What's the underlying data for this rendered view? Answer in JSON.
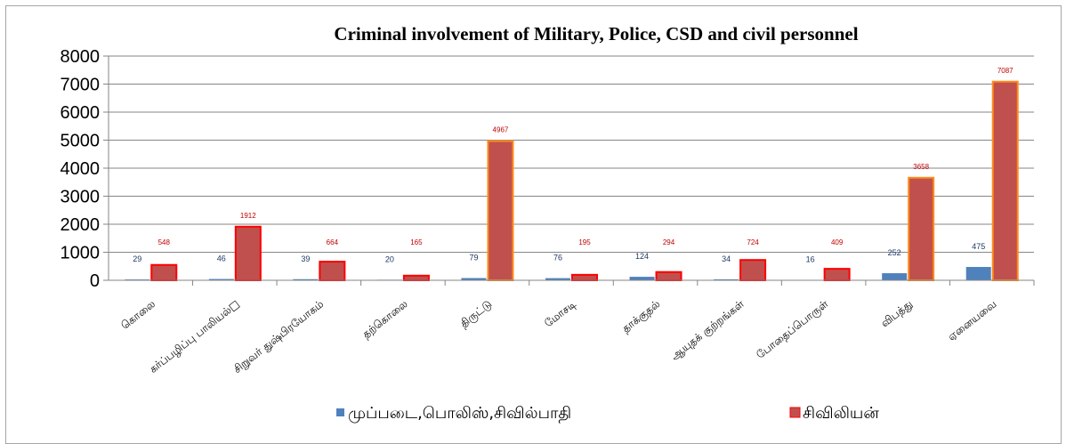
{
  "chart_data": {
    "type": "bar",
    "title": "Criminal involvement of Military, Police, CSD and civil personnel",
    "categories": [
      "கொலை",
      "கர்ப்பழிப்பு பாலியல்□",
      "சிறுவர் துஷ்பிரயோகம்",
      "தற்கொலை",
      "திருட்டு",
      "மோசடி",
      "தாக்குதல்",
      "ஆயுதக் குற்றங்கள்",
      "போதைப்பொருள்",
      "விபத்து",
      "ஏனையவை"
    ],
    "series": [
      {
        "name": "முப்படை,பொலிஸ்,சிவில்பாதி",
        "values": [
          29,
          46,
          39,
          20,
          79,
          76,
          124,
          34,
          16,
          252,
          475
        ],
        "color": "#4f81bd"
      },
      {
        "name": "சிவிலியன்",
        "values": [
          548,
          1912,
          664,
          165,
          4967,
          195,
          294,
          724,
          409,
          3658,
          7087
        ],
        "color": "#c0504d"
      }
    ],
    "ylim": [
      0,
      8000
    ],
    "yticks": [
      0,
      1000,
      2000,
      3000,
      4000,
      5000,
      6000,
      7000,
      8000
    ],
    "grid": true,
    "legend_position": "bottom",
    "xlabel": "",
    "ylabel": ""
  }
}
